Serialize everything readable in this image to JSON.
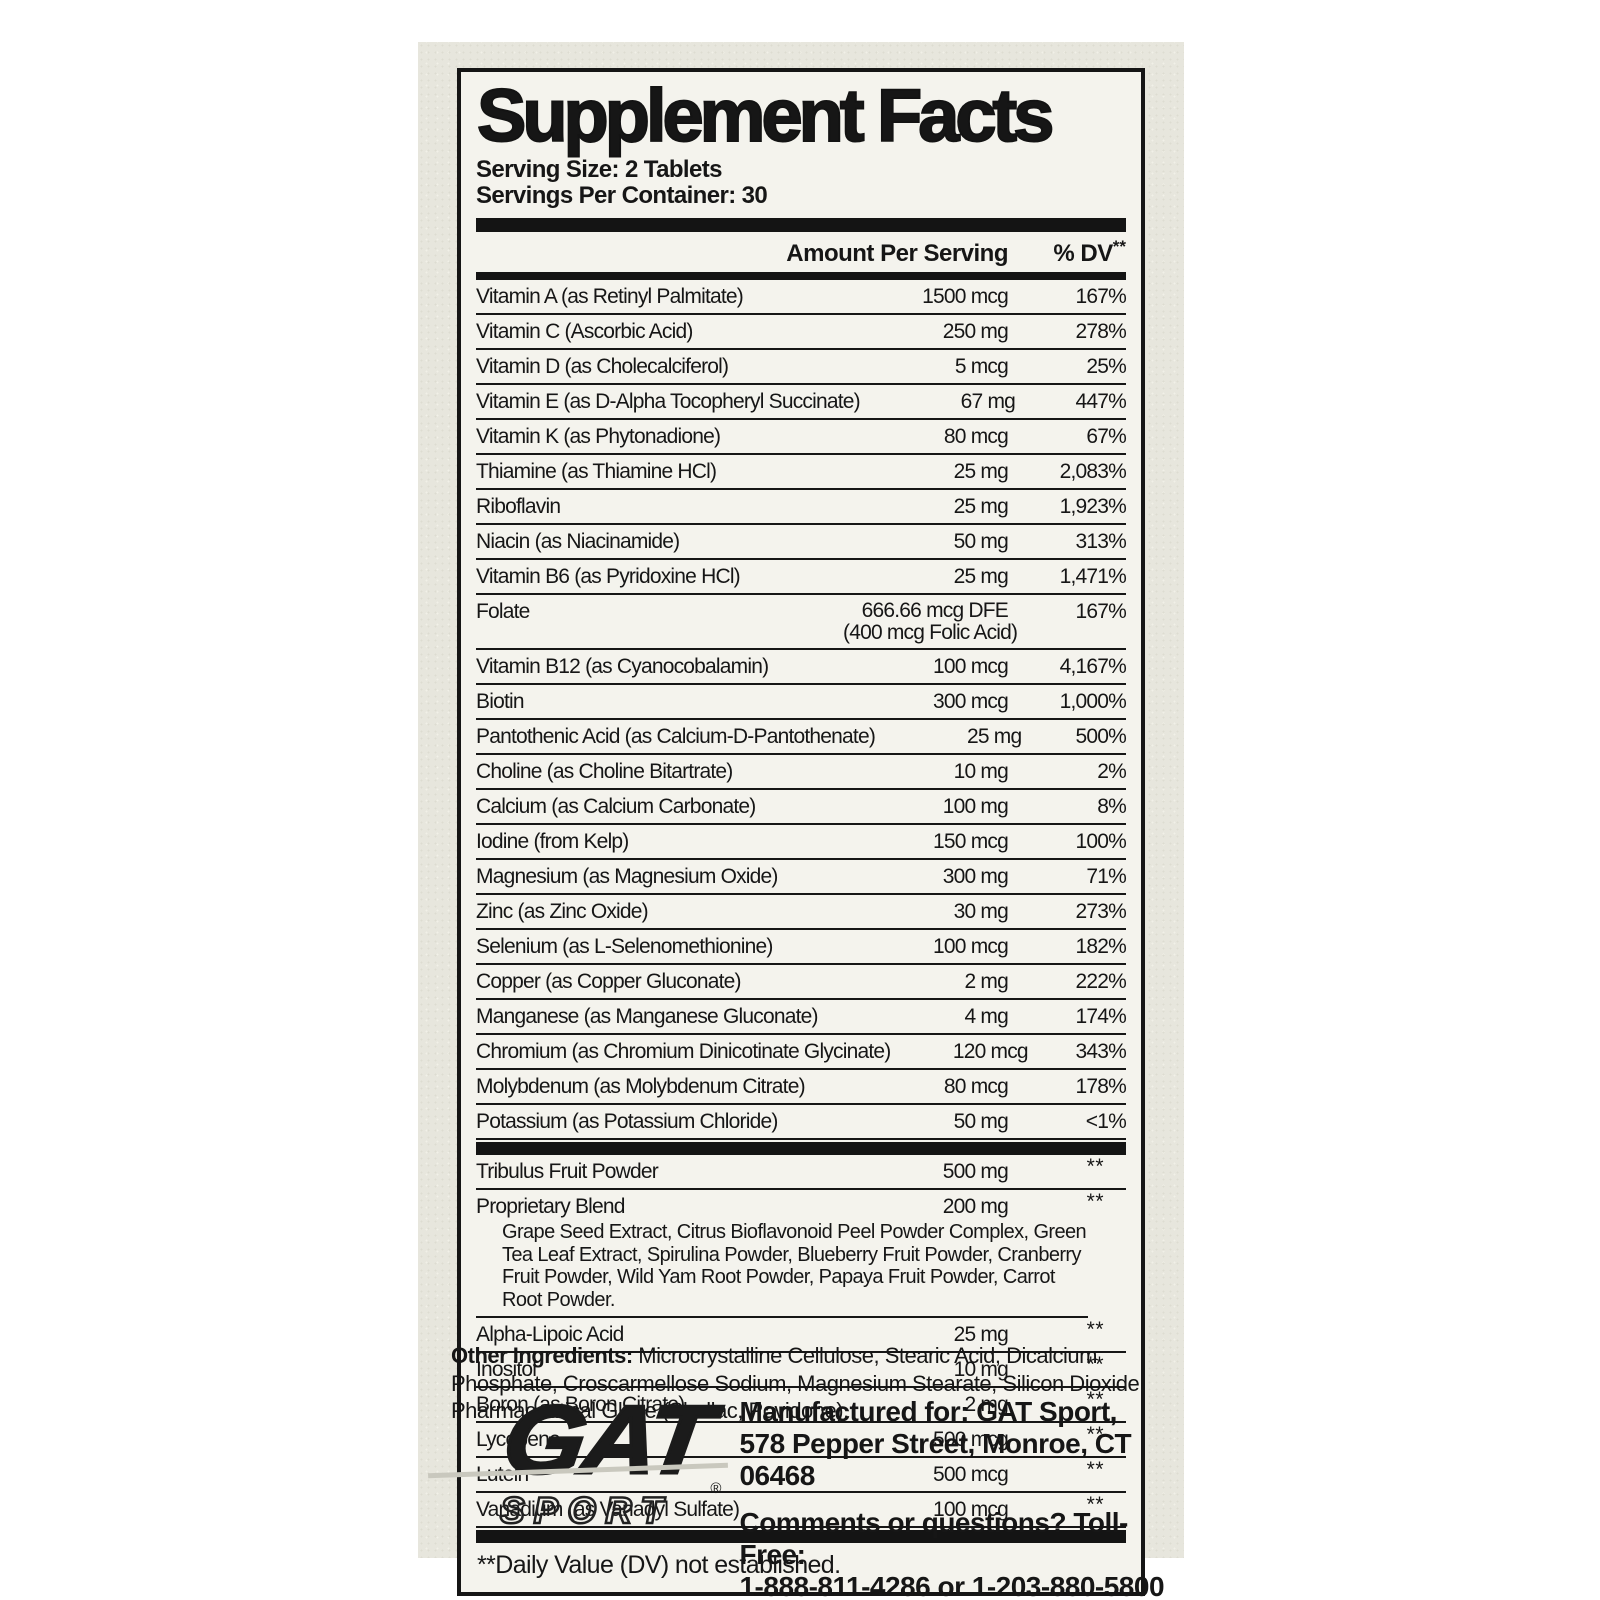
{
  "label": {
    "title": "Supplement Facts",
    "serving_size": "Serving Size: 2 Tablets",
    "servings_per_container": "Servings Per Container: 30",
    "columns": {
      "amount": "Amount Per Serving",
      "dv": "% DV",
      "dv_sup": "**"
    },
    "rows": [
      {
        "name": "Vitamin A (as Retinyl Palmitate)",
        "amount": "1500 mcg",
        "dv": "167%"
      },
      {
        "name": "Vitamin C (Ascorbic Acid)",
        "amount": "250 mg",
        "dv": "278%"
      },
      {
        "name": "Vitamin D (as Cholecalciferol)",
        "amount": "5 mcg",
        "dv": "25%"
      },
      {
        "name": "Vitamin E (as D-Alpha Tocopheryl Succinate)",
        "amount": "67 mg",
        "dv": "447%"
      },
      {
        "name": "Vitamin K (as Phytonadione)",
        "amount": "80 mcg",
        "dv": "67%"
      },
      {
        "name": "Thiamine (as Thiamine HCl)",
        "amount": "25 mg",
        "dv": "2,083%"
      },
      {
        "name": "Riboflavin",
        "amount": "25 mg",
        "dv": "1,923%"
      },
      {
        "name": "Niacin (as Niacinamide)",
        "amount": "50 mg",
        "dv": "313%"
      },
      {
        "name": "Vitamin B6 (as Pyridoxine HCl)",
        "amount": "25 mg",
        "dv": "1,471%"
      },
      {
        "name": "Folate",
        "amount": "666.66 mcg DFE",
        "amount2": "(400 mcg Folic Acid)",
        "dv": "167%"
      },
      {
        "name": "Vitamin B12 (as Cyanocobalamin)",
        "amount": "100 mcg",
        "dv": "4,167%"
      },
      {
        "name": "Biotin",
        "amount": "300 mcg",
        "dv": "1,000%"
      },
      {
        "name": "Pantothenic Acid (as Calcium-D-Pantothenate)",
        "amount": "25 mg",
        "dv": "500%"
      },
      {
        "name": "Choline (as Choline Bitartrate)",
        "amount": "10 mg",
        "dv": "2%"
      },
      {
        "name": "Calcium (as Calcium Carbonate)",
        "amount": "100 mg",
        "dv": "8%"
      },
      {
        "name": "Iodine (from Kelp)",
        "amount": "150 mcg",
        "dv": "100%"
      },
      {
        "name": "Magnesium (as Magnesium Oxide)",
        "amount": "300 mg",
        "dv": "71%"
      },
      {
        "name": "Zinc (as Zinc Oxide)",
        "amount": "30 mg",
        "dv": "273%"
      },
      {
        "name": "Selenium (as L-Selenomethionine)",
        "amount": "100 mcg",
        "dv": "182%"
      },
      {
        "name": "Copper (as Copper Gluconate)",
        "amount": "2 mg",
        "dv": "222%"
      },
      {
        "name": "Manganese (as Manganese Gluconate)",
        "amount": "4 mg",
        "dv": "174%"
      },
      {
        "name": "Chromium (as Chromium Dinicotinate Glycinate)",
        "amount": "120 mcg",
        "dv": "343%"
      },
      {
        "name": "Molybdenum (as Molybdenum Citrate)",
        "amount": "80 mcg",
        "dv": "178%"
      },
      {
        "name": "Potassium (as Potassium Chloride)",
        "amount": "50 mg",
        "dv": "<1%"
      },
      {
        "name": "Tribulus Fruit Powder",
        "amount": "500 mg",
        "dv_sup": "**",
        "bar_before": true
      },
      {
        "name": "Proprietary Blend",
        "amount": "200 mg",
        "dv_sup": "**",
        "sub": "Grape Seed Extract, Citrus Bioflavonoid Peel Powder Complex, Green Tea Leaf Extract, Spirulina Powder, Blueberry Fruit Powder, Cranberry Fruit Powder, Wild Yam Root Powder, Papaya Fruit Powder, Carrot Root Powder."
      },
      {
        "name": "Alpha-Lipoic Acid",
        "amount": "25 mg",
        "dv_sup": "**"
      },
      {
        "name": "Inositol",
        "amount": "10 mg",
        "dv_sup": "**"
      },
      {
        "name": "Boron (as Boron Citrate)",
        "amount": "2 mg",
        "dv_sup": "**"
      },
      {
        "name": "Lycopene",
        "amount": "500 mcg",
        "dv_sup": "**"
      },
      {
        "name": "Lutein",
        "amount": "500 mcg",
        "dv_sup": "**"
      },
      {
        "name": "Vanadium (as Vanadyl Sulfate)",
        "amount": "100 mcg",
        "dv_sup": "**"
      }
    ],
    "footnote": "**Daily Value (DV) not established."
  },
  "other_ingredients": {
    "label": "Other Ingredients:",
    "text": " Microcrystalline Cellulose, Stearic Acid, Dicalcium Phosphate, Croscarmellose Sodium, Magnesium Stearate, Silicon Dioxide, Pharmaceutical Glaze (Shellac, Povidone)."
  },
  "brand": {
    "name": "GAT",
    "sub": "SPORT",
    "registered": "®"
  },
  "manufacturer": {
    "line1": "Manufactured for: GAT Sport,",
    "line2": "578 Pepper Street, Monroe, CT 06468",
    "line3": "Comments or questions? Toll-Free:",
    "line4": "1-888-811-4286 or 1-203-880-5800"
  }
}
